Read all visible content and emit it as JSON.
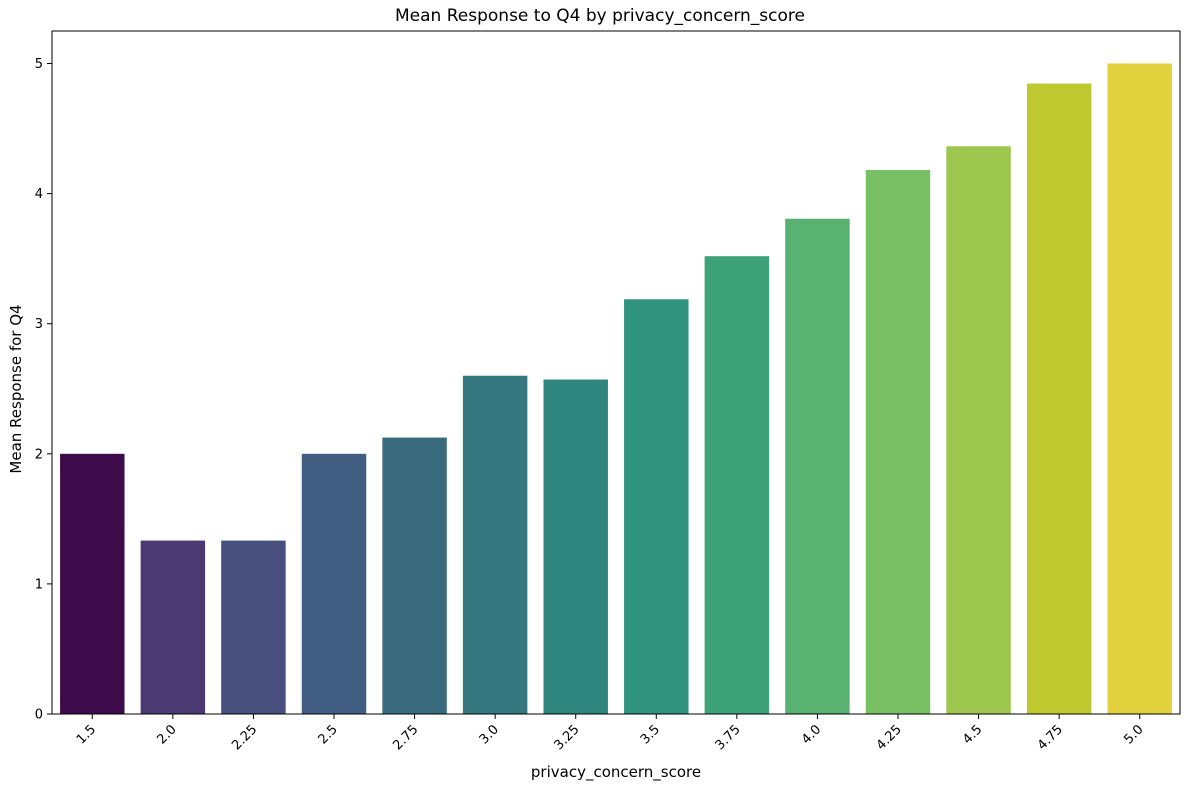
{
  "chart_data": {
    "type": "bar",
    "title": "Mean Response to Q4 by privacy_concern_score",
    "xlabel": "privacy_concern_score",
    "ylabel": "Mean Response for Q4",
    "categories": [
      "1.5",
      "2.0",
      "2.25",
      "2.5",
      "2.75",
      "3.0",
      "3.25",
      "3.5",
      "3.75",
      "4.0",
      "4.25",
      "4.5",
      "4.75",
      "5.0"
    ],
    "values": [
      2.0,
      1.333,
      1.333,
      2.0,
      2.125,
      2.6,
      2.571,
      3.188,
      3.519,
      3.807,
      4.182,
      4.364,
      4.846,
      5.0
    ],
    "colors": [
      "#3e0b4b",
      "#4a3a71",
      "#48507e",
      "#415e82",
      "#3b6b7f",
      "#35777f",
      "#2e867e",
      "#30937d",
      "#3da17a",
      "#59b172",
      "#79bf63",
      "#9dc74f",
      "#bec930",
      "#e0d13d"
    ],
    "ylim": [
      0,
      5.25
    ],
    "yticks": [
      "0",
      "1",
      "2",
      "3",
      "4",
      "5"
    ],
    "grid": false,
    "legend": "none"
  }
}
